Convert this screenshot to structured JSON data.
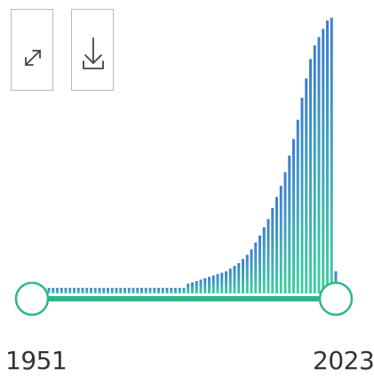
{
  "controls": {
    "expand_icon": "expand-arrows-icon",
    "download_icon": "download-icon"
  },
  "range": {
    "start_label": "1951",
    "end_label": "2023"
  },
  "colors": {
    "bar_low": "#3ecfa0",
    "bar_high": "#3a7bd5",
    "track": "#2fb58c",
    "handle_stroke": "#2fb58c",
    "handle_fill": "#ffffff"
  },
  "chart_data": {
    "type": "bar",
    "x": [
      1951,
      1952,
      1953,
      1954,
      1955,
      1956,
      1957,
      1958,
      1959,
      1960,
      1961,
      1962,
      1963,
      1964,
      1965,
      1966,
      1967,
      1968,
      1969,
      1970,
      1971,
      1972,
      1973,
      1974,
      1975,
      1976,
      1977,
      1978,
      1979,
      1980,
      1981,
      1982,
      1983,
      1984,
      1985,
      1986,
      1987,
      1988,
      1989,
      1990,
      1991,
      1992,
      1993,
      1994,
      1995,
      1996,
      1997,
      1998,
      1999,
      2000,
      2001,
      2002,
      2003,
      2004,
      2005,
      2006,
      2007,
      2008,
      2009,
      2010,
      2011,
      2012,
      2013,
      2014,
      2015,
      2016,
      2017,
      2018,
      2019,
      2020,
      2021,
      2022,
      2023
    ],
    "values": [
      2,
      2,
      2,
      2,
      2,
      2,
      2,
      2,
      2,
      2,
      2,
      2,
      2,
      2,
      2,
      2,
      2,
      2,
      2,
      2,
      2,
      2,
      2,
      2,
      2,
      2,
      2,
      2,
      2,
      2,
      2,
      2,
      2,
      2,
      2,
      2,
      2,
      3.5,
      4,
      4.5,
      5,
      5.5,
      6,
      6.5,
      7,
      7.5,
      8,
      9,
      10,
      11,
      12.5,
      14,
      16,
      18.5,
      21,
      24,
      27,
      31,
      35,
      39,
      44,
      50,
      56,
      63,
      71,
      78,
      85,
      90,
      93,
      96,
      99,
      100,
      8
    ],
    "ylim": [
      0,
      100
    ],
    "xlim": [
      1951,
      2023
    ]
  }
}
